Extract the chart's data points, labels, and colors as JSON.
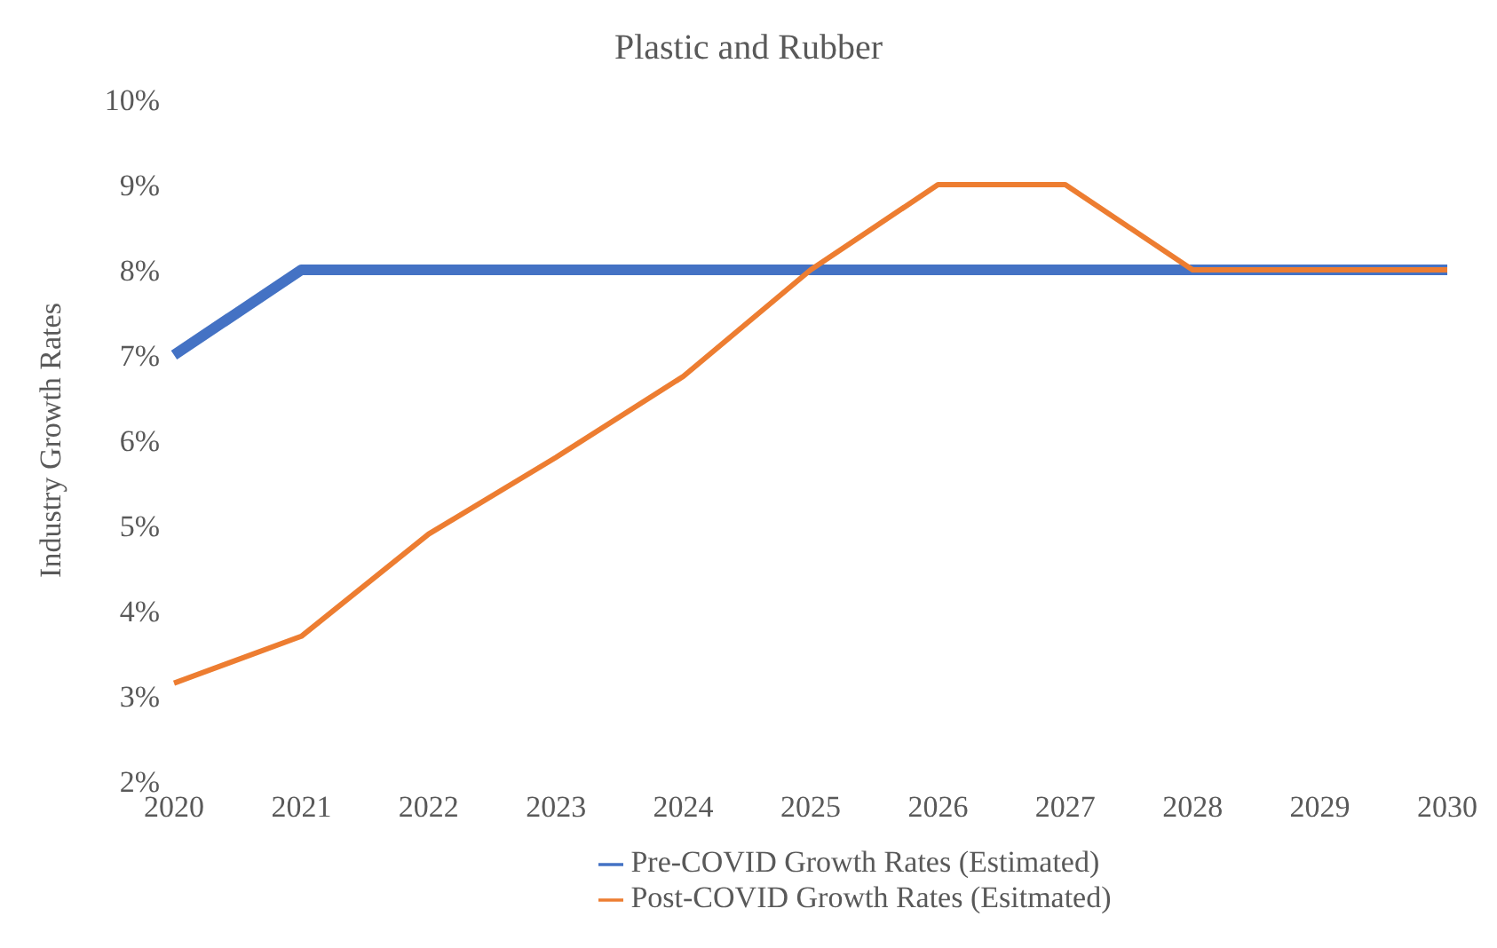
{
  "chart_data": {
    "type": "line",
    "title": "Plastic and Rubber",
    "ylabel": "Industry Growth Rates",
    "categories": [
      "2020",
      "2021",
      "2022",
      "2023",
      "2024",
      "2025",
      "2026",
      "2027",
      "2028",
      "2029",
      "2030"
    ],
    "series": [
      {
        "name": "Pre-COVID Growth Rates (Estimated)",
        "color": "#4472c4",
        "values": [
          7,
          8,
          8,
          8,
          8,
          8,
          8,
          8,
          8,
          8,
          8
        ]
      },
      {
        "name": "Post-COVID Growth Rates (Esitmated)",
        "color": "#ed7d31",
        "values": [
          3.15,
          3.7,
          4.9,
          5.8,
          6.75,
          8,
          9,
          9,
          8,
          8,
          8
        ]
      }
    ],
    "ylim": [
      2,
      10
    ],
    "yticks": [
      {
        "value": 2,
        "label": "2%"
      },
      {
        "value": 3,
        "label": "3%"
      },
      {
        "value": 4,
        "label": "4%"
      },
      {
        "value": 5,
        "label": "5%"
      },
      {
        "value": 6,
        "label": "6%"
      },
      {
        "value": 7,
        "label": "7%"
      },
      {
        "value": 8,
        "label": "8%"
      },
      {
        "value": 9,
        "label": "9%"
      },
      {
        "value": 10,
        "label": "10%"
      }
    ],
    "grid": false,
    "legend": "bottom",
    "marker": "none",
    "line_style": "solid"
  }
}
